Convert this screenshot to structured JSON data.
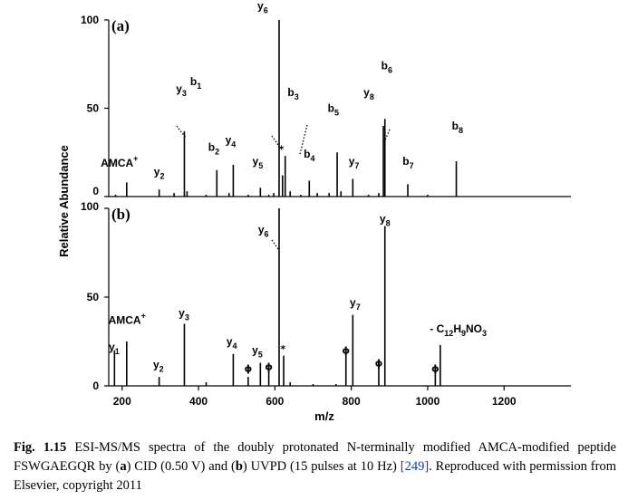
{
  "chart_data": {
    "type": "bar",
    "xlabel": "m/z",
    "ylabel": "Relative Abundance",
    "xlim": [
      165,
      1375
    ],
    "x_ticks": [
      "200",
      "400",
      "600",
      "800",
      "1000",
      "1200"
    ],
    "x_tick_values": [
      200,
      400,
      600,
      800,
      1000,
      1200
    ],
    "ylim": [
      0,
      100
    ],
    "y_ticks": [
      "0",
      "50",
      "100"
    ],
    "y_tick_values": [
      0,
      50,
      100
    ],
    "panels": [
      {
        "letter": "(a)",
        "peaks": [
          {
            "x": 183,
            "y": 1
          },
          {
            "x": 212,
            "y": 8
          },
          {
            "x": 297,
            "y": 4
          },
          {
            "x": 336,
            "y": 2
          },
          {
            "x": 363,
            "y": 37
          },
          {
            "x": 370,
            "y": 3
          },
          {
            "x": 420,
            "y": 1
          },
          {
            "x": 448,
            "y": 15
          },
          {
            "x": 480,
            "y": 2
          },
          {
            "x": 491,
            "y": 18
          },
          {
            "x": 530,
            "y": 1
          },
          {
            "x": 562,
            "y": 5
          },
          {
            "x": 584,
            "y": 1
          },
          {
            "x": 597,
            "y": 2
          },
          {
            "x": 611,
            "y": 100
          },
          {
            "x": 620,
            "y": 12
          },
          {
            "x": 627,
            "y": 23
          },
          {
            "x": 640,
            "y": 3
          },
          {
            "x": 668,
            "y": 1
          },
          {
            "x": 690,
            "y": 9
          },
          {
            "x": 711,
            "y": 2
          },
          {
            "x": 742,
            "y": 2
          },
          {
            "x": 763,
            "y": 25
          },
          {
            "x": 773,
            "y": 3
          },
          {
            "x": 804,
            "y": 10
          },
          {
            "x": 845,
            "y": 1
          },
          {
            "x": 872,
            "y": 2
          },
          {
            "x": 884,
            "y": 40
          },
          {
            "x": 888,
            "y": 44
          },
          {
            "x": 948,
            "y": 7
          },
          {
            "x": 1000,
            "y": 1
          },
          {
            "x": 1075,
            "y": 20
          }
        ],
        "labels": [
          {
            "text": "AMCA",
            "sup": "+",
            "x": 193,
            "y": 17
          },
          {
            "text": "y",
            "sub": "2",
            "x": 297,
            "y": 12
          },
          {
            "text": "y",
            "sub": "3",
            "x": 355,
            "y": 59
          },
          {
            "text": "b",
            "sub": "1",
            "x": 393,
            "y": 63
          },
          {
            "text": "b",
            "sub": "2",
            "x": 440,
            "y": 26
          },
          {
            "text": "y",
            "sub": "4",
            "x": 484,
            "y": 30
          },
          {
            "text": "y",
            "sub": "5",
            "x": 555,
            "y": 18
          },
          {
            "text": "y",
            "sub": "6",
            "x": 568,
            "y": 106
          },
          {
            "text": "b",
            "sub": "3",
            "x": 648,
            "y": 57
          },
          {
            "text": "b",
            "sub": "4",
            "x": 690,
            "y": 22
          },
          {
            "text": "b",
            "sub": "5",
            "x": 753,
            "y": 48
          },
          {
            "text": "y",
            "sub": "7",
            "x": 807,
            "y": 18
          },
          {
            "text": "y",
            "sub": "8",
            "x": 846,
            "y": 57
          },
          {
            "text": "b",
            "sub": "6",
            "x": 893,
            "y": 72
          },
          {
            "text": "b",
            "sub": "7",
            "x": 949,
            "y": 18
          },
          {
            "text": "b",
            "sub": "8",
            "x": 1078,
            "y": 38
          }
        ],
        "markers": [
          {
            "symbol": "*",
            "x": 617,
            "y": 25
          }
        ]
      },
      {
        "letter": "(b)",
        "peaks": [
          {
            "x": 180,
            "y": 20
          },
          {
            "x": 212,
            "y": 25
          },
          {
            "x": 297,
            "y": 5
          },
          {
            "x": 363,
            "y": 35
          },
          {
            "x": 420,
            "y": 2
          },
          {
            "x": 491,
            "y": 18
          },
          {
            "x": 530,
            "y": 5
          },
          {
            "x": 562,
            "y": 13
          },
          {
            "x": 584,
            "y": 13
          },
          {
            "x": 611,
            "y": 100
          },
          {
            "x": 623,
            "y": 17
          },
          {
            "x": 640,
            "y": 2
          },
          {
            "x": 700,
            "y": 1
          },
          {
            "x": 760,
            "y": 1
          },
          {
            "x": 786,
            "y": 18
          },
          {
            "x": 804,
            "y": 40
          },
          {
            "x": 872,
            "y": 13
          },
          {
            "x": 888,
            "y": 90
          },
          {
            "x": 1020,
            "y": 10
          },
          {
            "x": 1033,
            "y": 23
          }
        ],
        "labels": [
          {
            "text": "y",
            "sub": "1",
            "x": 179,
            "y": 20
          },
          {
            "text": "AMCA",
            "sup": "+",
            "x": 213,
            "y": 35
          },
          {
            "text": "y",
            "sub": "2",
            "x": 295,
            "y": 10
          },
          {
            "text": "y",
            "sub": "3",
            "x": 362,
            "y": 39
          },
          {
            "text": "y",
            "sub": "4",
            "x": 487,
            "y": 23
          },
          {
            "text": "y",
            "sub": "5",
            "x": 554,
            "y": 18
          },
          {
            "text": "y",
            "sub": "6",
            "x": 570,
            "y": 86
          },
          {
            "text": "y",
            "sub": "7",
            "x": 810,
            "y": 45
          },
          {
            "text": "y",
            "sub": "8",
            "x": 888,
            "y": 92
          },
          {
            "text": "- C",
            "formula": [
              [
                "12",
                "H"
              ],
              [
                "9",
                "NO"
              ],
              [
                "3",
                ""
              ]
            ],
            "x": 1080,
            "y": 30
          }
        ],
        "markers": [
          {
            "symbol": "ϕ",
            "x": 530,
            "y": 8
          },
          {
            "symbol": "ϕ",
            "x": 584,
            "y": 9
          },
          {
            "symbol": "*",
            "x": 621,
            "y": 19
          },
          {
            "symbol": "ϕ",
            "x": 786,
            "y": 18
          },
          {
            "symbol": "ϕ",
            "x": 872,
            "y": 11
          },
          {
            "symbol": "ϕ",
            "x": 1020,
            "y": 8
          }
        ]
      }
    ]
  },
  "caption": {
    "lead": "Fig. 1.15",
    "t1": " ESI-MS/MS spectra of the doubly protonated N-terminally modified AMCA-modified peptide FSWGAEGQR by (",
    "a": "a",
    "t2": ") CID (0.50 V) and (",
    "b": "b",
    "t3": ") UVPD (15 pulses at 10 Hz) ",
    "ref": "[249]",
    "t4": ". Reproduced with permission from Elsevier, copyright 2011"
  }
}
